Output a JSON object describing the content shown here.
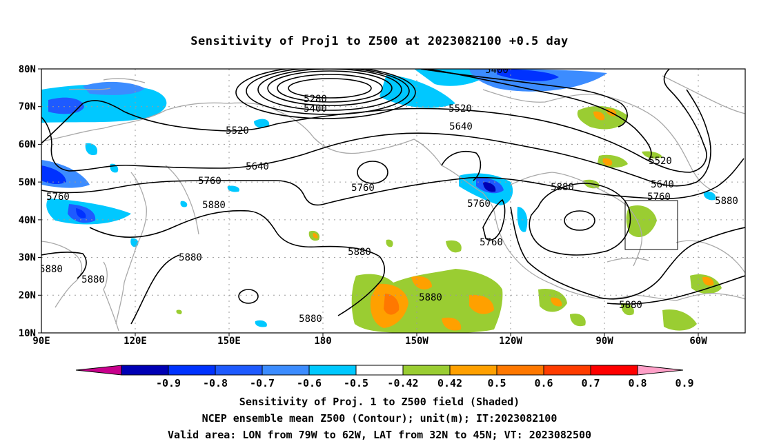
{
  "title": "Sensitivity of Proj1 to Z500 at 2023082100 +0.5 day",
  "lat_labels": [
    "80N",
    "70N",
    "60N",
    "50N",
    "40N",
    "30N",
    "20N",
    "10N"
  ],
  "lon_labels": [
    "90E",
    "120E",
    "150E",
    "180",
    "150W",
    "120W",
    "90W",
    "60W"
  ],
  "colorbar": {
    "labels": [
      "-0.9",
      "-0.8",
      "-0.7",
      "-0.6",
      "-0.5",
      "-0.42",
      "0.42",
      "0.5",
      "0.6",
      "0.7",
      "0.8",
      "0.9"
    ],
    "colors": [
      "#c8008c",
      "#0000b4",
      "#0032ff",
      "#1e5aff",
      "#3c8cff",
      "#00c8ff",
      "#ffffff",
      "#9acd32",
      "#ffa000",
      "#ff7800",
      "#ff3c00",
      "#ff0000",
      "#ffa0c8"
    ]
  },
  "contour_labels": [
    "5400",
    "5280",
    "5400",
    "5520",
    "5520",
    "5640",
    "5640",
    "5760",
    "5760",
    "5760",
    "5880",
    "5880",
    "5880",
    "5880",
    "5880",
    "5520",
    "5640",
    "5760",
    "5880",
    "5880",
    "5760",
    "5760",
    "5880",
    "5880"
  ],
  "captions": [
    "Sensitivity of Proj. 1 to Z500 field (Shaded)",
    "NCEP ensemble mean Z500 (Contour); unit(m); IT:2023082100",
    "Valid area: LON from 79W to 62W, LAT from 32N to 45N; VT: 2023082500"
  ]
}
